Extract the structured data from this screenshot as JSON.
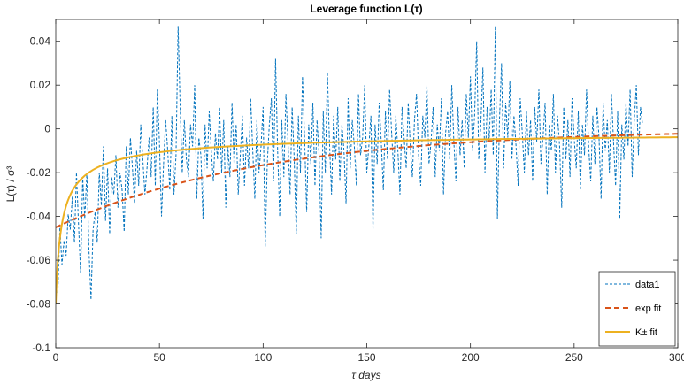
{
  "chart_data": {
    "type": "line",
    "title": "Leverage function L(τ)",
    "xlabel": "τ days",
    "ylabel": "L(τ) / σ³",
    "xlim": [
      0,
      300
    ],
    "ylim": [
      -0.1,
      0.05
    ],
    "xticks": [
      0,
      50,
      100,
      150,
      200,
      250,
      300
    ],
    "xtick_labels": [
      "0",
      "50",
      "100",
      "150",
      "200",
      "250",
      "300"
    ],
    "yticks": [
      -0.1,
      -0.08,
      -0.06,
      -0.04,
      -0.02,
      0,
      0.02,
      0.04
    ],
    "ytick_labels": [
      "-0.1",
      "-0.08",
      "-0.06",
      "-0.04",
      "-0.02",
      "0",
      "0.02",
      "0.04"
    ],
    "grid": false,
    "legend_position": "bottom-right",
    "series": [
      {
        "name": "data1",
        "style": "dashed",
        "color": "#0072BD",
        "x_start": 1,
        "x_step": 1,
        "values": [
          -0.075,
          -0.045,
          -0.062,
          -0.051,
          -0.058,
          -0.039,
          -0.046,
          -0.031,
          -0.052,
          -0.02,
          -0.044,
          -0.066,
          -0.022,
          -0.041,
          -0.02,
          -0.055,
          -0.078,
          -0.046,
          -0.038,
          -0.052,
          -0.02,
          -0.035,
          -0.008,
          -0.042,
          -0.018,
          -0.048,
          -0.022,
          -0.03,
          -0.012,
          -0.036,
          -0.02,
          -0.028,
          -0.047,
          -0.008,
          -0.03,
          -0.004,
          -0.018,
          -0.034,
          -0.01,
          -0.026,
          0.002,
          -0.014,
          -0.03,
          -0.018,
          -0.004,
          -0.022,
          0.01,
          -0.026,
          0.018,
          -0.006,
          -0.04,
          -0.016,
          0.004,
          -0.01,
          -0.028,
          0.006,
          -0.03,
          -0.012,
          0.047,
          0.01,
          -0.02,
          0.004,
          -0.014,
          -0.022,
          0.002,
          -0.008,
          0.02,
          -0.032,
          -0.004,
          -0.012,
          -0.041,
          0.002,
          -0.018,
          0.008,
          -0.01,
          -0.024,
          -0.002,
          -0.014,
          0.01,
          -0.02,
          0.004,
          -0.036,
          -0.008,
          -0.022,
          0.012,
          -0.016,
          0.002,
          -0.03,
          -0.012,
          0.006,
          -0.026,
          -0.004,
          -0.018,
          0.014,
          -0.01,
          -0.032,
          0.004,
          -0.02,
          -0.008,
          0.01,
          -0.054,
          -0.016,
          0.002,
          0.014,
          -0.024,
          0.032,
          -0.01,
          -0.04,
          0.004,
          -0.022,
          0.016,
          -0.006,
          -0.03,
          0.01,
          -0.014,
          -0.048,
          0.006,
          -0.02,
          0.024,
          -0.004,
          -0.038,
          0.002,
          -0.016,
          0.012,
          -0.026,
          0.004,
          -0.012,
          -0.05,
          0.008,
          -0.02,
          0.026,
          -0.006,
          -0.03,
          0.006,
          -0.014,
          0.01,
          -0.024,
          0.002,
          -0.01,
          -0.034,
          0.014,
          -0.018,
          0.004,
          -0.008,
          -0.026,
          0.016,
          -0.012,
          -0.004,
          0.02,
          -0.02,
          -0.008,
          0.006,
          -0.046,
          0.002,
          -0.016,
          0.012,
          -0.006,
          -0.028,
          0.008,
          -0.014,
          0.018,
          -0.002,
          -0.02,
          0.006,
          -0.01,
          -0.03,
          0.01,
          -0.004,
          -0.018,
          0.012,
          -0.008,
          -0.022,
          0.004,
          0.016,
          -0.012,
          -0.026,
          0.006,
          -0.004,
          0.02,
          -0.016,
          -0.006,
          0.01,
          -0.022,
          0.002,
          -0.01,
          0.014,
          -0.03,
          -0.002,
          0.008,
          -0.014,
          0.02,
          -0.006,
          -0.024,
          0.01,
          -0.012,
          0.004,
          -0.018,
          0.016,
          -0.004,
          0.024,
          -0.01,
          0.006,
          0.04,
          -0.014,
          0.002,
          0.028,
          -0.02,
          0.01,
          -0.006,
          0.018,
          -0.012,
          0.047,
          -0.041,
          0.004,
          0.03,
          -0.018,
          0.012,
          -0.004,
          0.022,
          -0.014,
          0.006,
          -0.008,
          -0.026,
          0.014,
          -0.002,
          -0.02,
          0.008,
          -0.012,
          0.004,
          -0.024,
          0.01,
          -0.006,
          0.018,
          -0.016,
          -0.004,
          0.012,
          -0.03,
          0.002,
          -0.01,
          0.016,
          -0.02,
          0.006,
          -0.008,
          -0.036,
          0.01,
          -0.014,
          0.004,
          -0.022,
          0.014,
          -0.004,
          -0.018,
          0.008,
          -0.028,
          0.002,
          -0.012,
          0.018,
          -0.008,
          -0.024,
          0.006,
          -0.016,
          0.01,
          -0.004,
          -0.032,
          0.012,
          -0.01,
          0.004,
          -0.02,
          0.016,
          -0.006,
          -0.026,
          0.008,
          -0.041,
          0.002,
          -0.014,
          0.012,
          -0.008,
          0.018,
          -0.022,
          0.004,
          0.02,
          -0.012,
          0.01,
          0.002
        ]
      },
      {
        "name": "exp fit",
        "style": "dashed",
        "color": "#D95319",
        "formula": "y = -0.045 * exp(-x / 100)",
        "amplitude": -0.045,
        "decay_days": 100
      },
      {
        "name": "K± fit",
        "style": "solid",
        "color": "#EDB120",
        "formula": "y = -0.08 * (1 + x / 1.6)^(-0.58)",
        "amplitude": -0.08,
        "scale_days": 1.6,
        "exponent": -0.58
      }
    ]
  }
}
